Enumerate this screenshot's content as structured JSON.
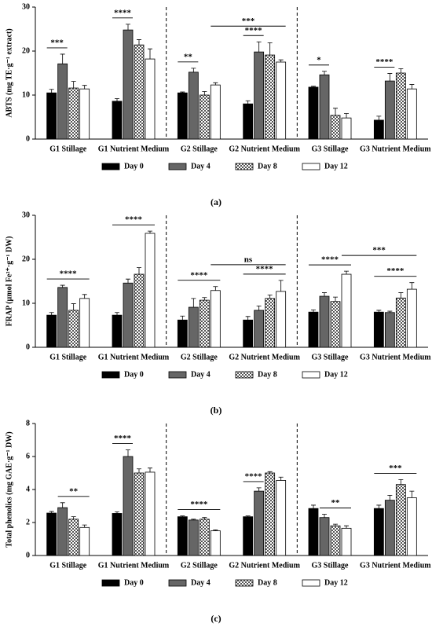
{
  "chart_data": [
    {
      "type": "bar",
      "label": "(a)",
      "y_label": "ABTS (mg TE·g⁻¹ extract)",
      "categories": [
        "G1 Stillage",
        "G1 Nutrient Medium",
        "G2 Stillage",
        "G2 Nutrient Medium",
        "G3 Stillage",
        "G3 Nutrient Medium"
      ],
      "ylim": [
        0,
        30
      ],
      "yticks": [
        0,
        10,
        20,
        30
      ],
      "series": [
        {
          "name": "Day 0",
          "color": "#000000",
          "values": [
            10.5,
            8.6,
            10.5,
            8.0,
            11.8,
            4.3
          ],
          "errors": [
            0.8,
            0.6,
            0.2,
            0.7,
            0.2,
            0.9
          ]
        },
        {
          "name": "Day 4",
          "color": "#666666",
          "values": [
            17.1,
            24.8,
            15.2,
            19.8,
            14.6,
            13.2
          ],
          "errors": [
            2.2,
            1.3,
            0.9,
            2.3,
            0.8,
            1.7
          ]
        },
        {
          "name": "Day 8",
          "color": "#bbbbbb",
          "pattern": "checkered",
          "values": [
            11.6,
            21.4,
            10.0,
            19.1,
            5.4,
            15.0
          ],
          "errors": [
            1.5,
            1.2,
            0.8,
            2.8,
            1.6,
            1.0
          ]
        },
        {
          "name": "Day 12",
          "color": "#ffffff",
          "values": [
            11.4,
            18.2,
            12.3,
            17.5,
            4.8,
            11.4
          ],
          "errors": [
            0.8,
            2.3,
            0.5,
            0.5,
            1.0,
            1.0
          ]
        }
      ],
      "annotations": [
        {
          "text": "***",
          "start": [
            0,
            0
          ],
          "end": [
            0,
            1
          ]
        },
        {
          "text": "****",
          "start": [
            1,
            0
          ],
          "end": [
            1,
            1
          ]
        },
        {
          "text": "**",
          "start": [
            2,
            0
          ],
          "end": [
            2,
            1
          ]
        },
        {
          "text": "****",
          "start": [
            3,
            0
          ],
          "end": [
            3,
            1
          ]
        },
        {
          "text": "***",
          "start": [
            2,
            3
          ],
          "end": [
            3,
            3
          ]
        },
        {
          "text": "*",
          "start": [
            4,
            0
          ],
          "end": [
            4,
            1
          ]
        },
        {
          "text": "****",
          "start": [
            5,
            0
          ],
          "end": [
            5,
            1
          ]
        }
      ]
    },
    {
      "type": "bar",
      "label": "(b)",
      "y_label": "FRAP (µmol Fe²⁺·g⁻¹ DW)",
      "categories": [
        "G1 Stillage",
        "G1 Nutrient Medium",
        "G2 Stillage",
        "G2 Nutrient Medium",
        "G3 Stillage",
        "G3 Nutrient Medium"
      ],
      "ylim": [
        0,
        30
      ],
      "yticks": [
        0,
        10,
        20,
        30
      ],
      "series": [
        {
          "name": "Day 0",
          "color": "#000000",
          "values": [
            7.3,
            7.3,
            6.2,
            6.2,
            8.0,
            8.0
          ],
          "errors": [
            0.6,
            0.6,
            0.9,
            0.8,
            0.5,
            0.4
          ]
        },
        {
          "name": "Day 4",
          "color": "#666666",
          "values": [
            13.6,
            14.6,
            9.1,
            8.4,
            11.6,
            7.9
          ],
          "errors": [
            0.5,
            0.9,
            2.0,
            1.0,
            0.8,
            0.3
          ]
        },
        {
          "name": "Day 8",
          "color": "#bbbbbb",
          "pattern": "checkered",
          "values": [
            8.4,
            16.6,
            10.7,
            11.1,
            10.4,
            11.2
          ],
          "errors": [
            1.5,
            1.5,
            0.6,
            0.8,
            1.0,
            1.2
          ]
        },
        {
          "name": "Day 12",
          "color": "#ffffff",
          "values": [
            11.1,
            25.9,
            12.9,
            12.7,
            16.6,
            13.2
          ],
          "errors": [
            0.9,
            0.5,
            0.9,
            2.5,
            0.7,
            1.5
          ]
        }
      ],
      "annotations": [
        {
          "text": "****",
          "start": [
            0,
            0
          ],
          "end": [
            0,
            3
          ]
        },
        {
          "text": "****",
          "start": [
            1,
            0
          ],
          "end": [
            1,
            3
          ]
        },
        {
          "text": "****",
          "start": [
            2,
            0
          ],
          "end": [
            2,
            3
          ]
        },
        {
          "text": "****",
          "start": [
            3,
            0
          ],
          "end": [
            3,
            3
          ]
        },
        {
          "text": "ns",
          "start": [
            2,
            3
          ],
          "end": [
            3,
            3
          ]
        },
        {
          "text": "****",
          "start": [
            4,
            0
          ],
          "end": [
            4,
            3
          ]
        },
        {
          "text": "****",
          "start": [
            5,
            0
          ],
          "end": [
            5,
            3
          ]
        },
        {
          "text": "***",
          "start": [
            4,
            3
          ],
          "end": [
            5,
            3
          ]
        }
      ]
    },
    {
      "type": "bar",
      "label": "(c)",
      "y_label": "Total phenolics (mg GAE·g⁻¹ DW)",
      "categories": [
        "G1 Stillage",
        "G1 Nutrient Medium",
        "G2 Stillage",
        "G2 Nutrient Medium",
        "G3 Stillage",
        "G3 Nutrient Medium"
      ],
      "ylim": [
        0,
        8
      ],
      "yticks": [
        0,
        2,
        4,
        6,
        8
      ],
      "series": [
        {
          "name": "Day 0",
          "color": "#000000",
          "values": [
            2.57,
            2.55,
            2.35,
            2.35,
            2.85,
            2.85
          ],
          "errors": [
            0.1,
            0.1,
            0.05,
            0.05,
            0.2,
            0.2
          ]
        },
        {
          "name": "Day 4",
          "color": "#666666",
          "values": [
            2.9,
            6.0,
            2.15,
            3.9,
            2.3,
            3.35
          ],
          "errors": [
            0.3,
            0.4,
            0.05,
            0.2,
            0.2,
            0.3
          ]
        },
        {
          "name": "Day 8",
          "color": "#bbbbbb",
          "pattern": "checkered",
          "values": [
            2.2,
            5.0,
            2.2,
            5.0,
            1.8,
            4.3
          ],
          "errors": [
            0.15,
            0.25,
            0.1,
            0.08,
            0.1,
            0.3
          ]
        },
        {
          "name": "Day 12",
          "color": "#ffffff",
          "values": [
            1.7,
            5.05,
            1.5,
            4.55,
            1.65,
            3.5
          ],
          "errors": [
            0.15,
            0.25,
            0.05,
            0.2,
            0.15,
            0.4
          ]
        }
      ],
      "annotations": [
        {
          "text": "**",
          "start": [
            0,
            1
          ],
          "end": [
            0,
            3
          ]
        },
        {
          "text": "****",
          "start": [
            1,
            0
          ],
          "end": [
            1,
            1
          ]
        },
        {
          "text": "****",
          "start": [
            2,
            0
          ],
          "end": [
            2,
            3
          ]
        },
        {
          "text": "****",
          "start": [
            3,
            0
          ],
          "end": [
            3,
            1
          ]
        },
        {
          "text": "**",
          "start": [
            4,
            1
          ],
          "end": [
            4,
            3
          ]
        },
        {
          "text": "***",
          "start": [
            5,
            0
          ],
          "end": [
            5,
            3
          ]
        }
      ]
    }
  ]
}
